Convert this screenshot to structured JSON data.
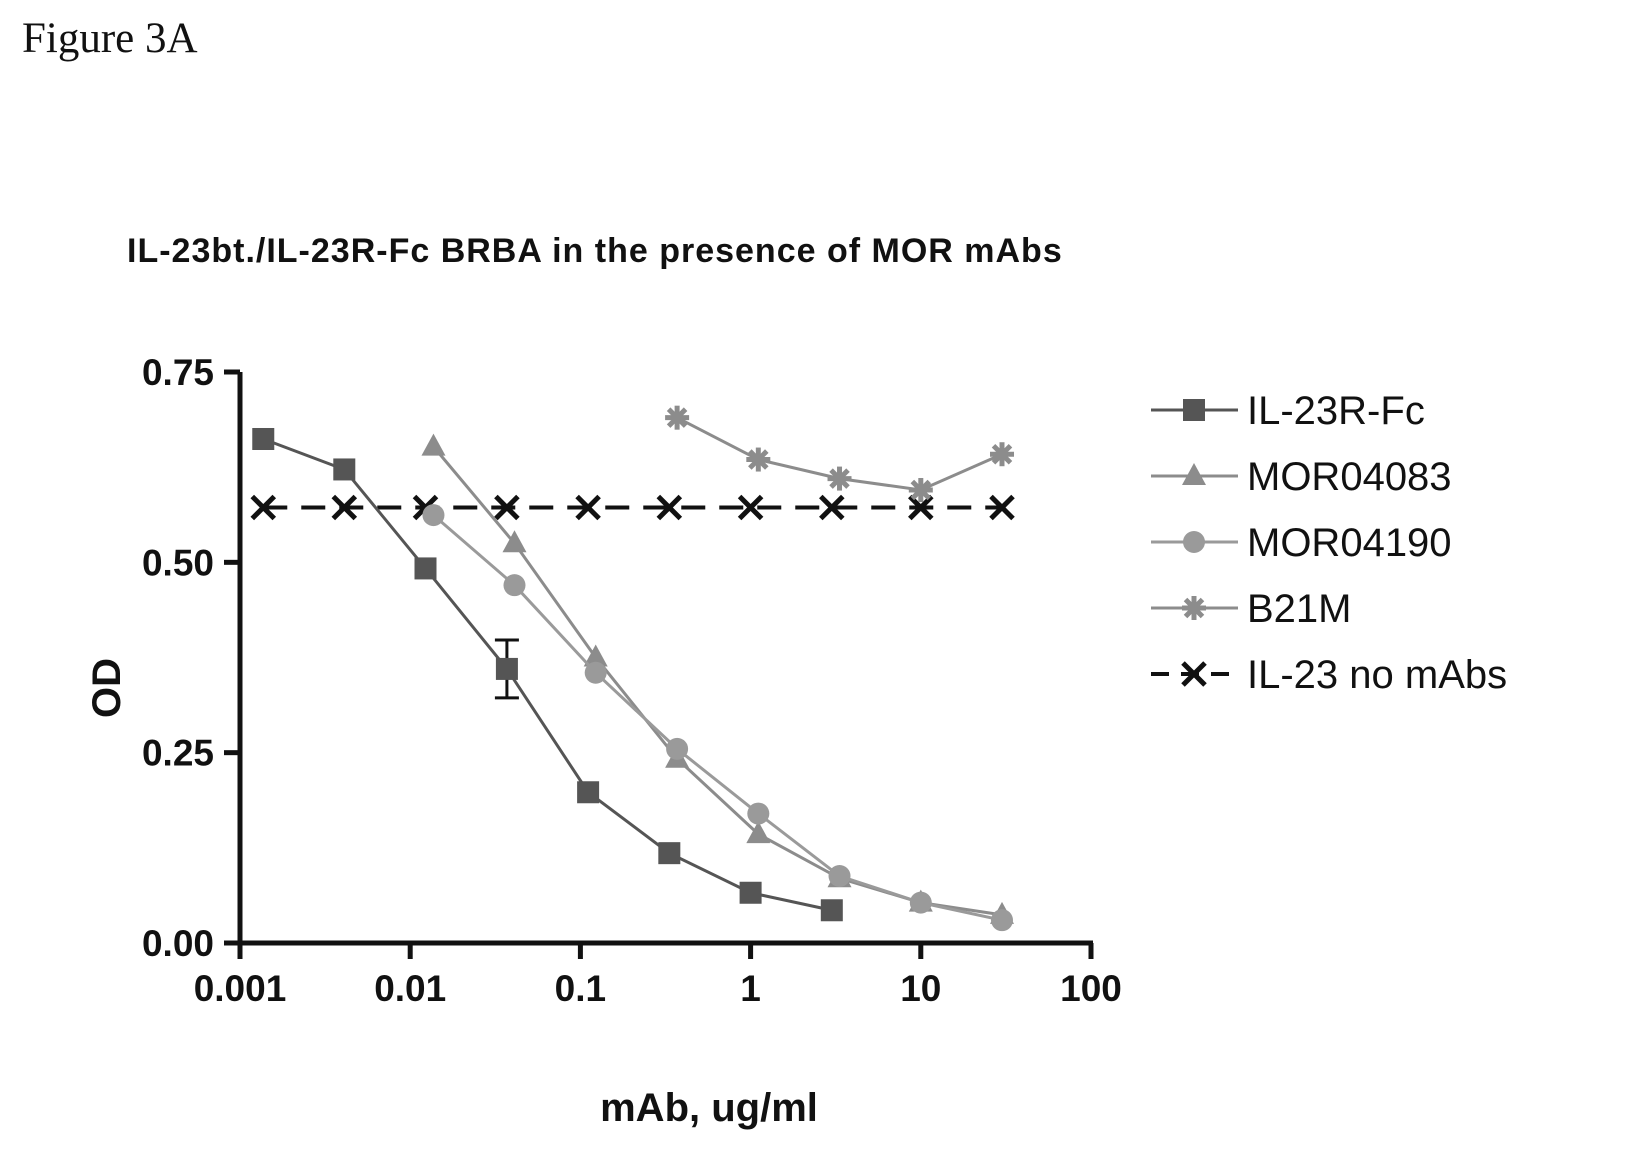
{
  "figure_label": "Figure 3A",
  "chart_data": {
    "type": "line",
    "title": "IL-23bt./IL-23R-Fc  BRBA in the presence of MOR mAbs",
    "xlabel": "mAb, ug/ml",
    "ylabel": "OD",
    "x_scale": "log",
    "xlim": [
      0.001,
      100
    ],
    "ylim": [
      0,
      0.75
    ],
    "x_ticks": [
      "0.001",
      "0.01",
      "0.1",
      "1",
      "10",
      "100"
    ],
    "y_ticks": [
      "0.00",
      "0.25",
      "0.50",
      "0.75"
    ],
    "grid": false,
    "legend_position": "right",
    "series": [
      {
        "name": "IL-23R-Fc",
        "marker": "square",
        "color": "#555555",
        "dash": false,
        "x": [
          0.00137,
          0.0041,
          0.0123,
          0.037,
          0.111,
          0.333,
          1,
          3
        ],
        "y": [
          0.662,
          0.622,
          0.492,
          0.36,
          0.198,
          0.118,
          0.066,
          0.043
        ],
        "errors": [
          null,
          null,
          null,
          0.038,
          null,
          null,
          null,
          null
        ]
      },
      {
        "name": "MOR04083",
        "marker": "triangle",
        "color": "#8c8c8c",
        "dash": false,
        "x": [
          0.0137,
          0.041,
          0.123,
          0.37,
          1.11,
          3.33,
          10,
          30
        ],
        "y": [
          0.652,
          0.525,
          0.375,
          0.242,
          0.143,
          0.085,
          0.053,
          0.037
        ]
      },
      {
        "name": "MOR04190",
        "marker": "circle",
        "color": "#9a9a9a",
        "dash": false,
        "x": [
          0.0137,
          0.041,
          0.123,
          0.37,
          1.11,
          3.33,
          10,
          30
        ],
        "y": [
          0.562,
          0.47,
          0.355,
          0.255,
          0.17,
          0.088,
          0.053,
          0.03
        ]
      },
      {
        "name": "B21M",
        "marker": "asterisk",
        "color": "#8c8c8c",
        "dash": false,
        "x": [
          0.37,
          1.11,
          3.33,
          10,
          30
        ],
        "y": [
          0.69,
          0.635,
          0.61,
          0.595,
          0.642
        ]
      },
      {
        "name": "IL-23 no mAbs",
        "marker": "x",
        "color": "#111111",
        "dash": true,
        "x": [
          0.00137,
          0.0041,
          0.0123,
          0.037,
          0.111,
          0.333,
          1,
          3,
          10,
          30
        ],
        "y": [
          0.572,
          0.572,
          0.572,
          0.572,
          0.572,
          0.572,
          0.572,
          0.572,
          0.572,
          0.572
        ]
      }
    ]
  }
}
